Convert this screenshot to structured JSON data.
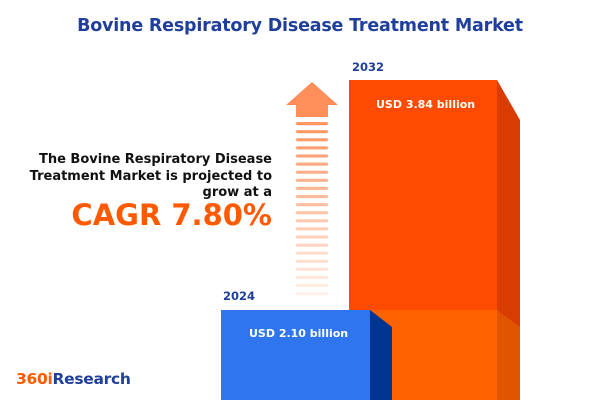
{
  "title": "Bovine Respiratory Disease Treatment Market",
  "description": "The Bovine Respiratory Disease Treatment Market is projected to grow at a",
  "cagr_label": "CAGR 7.80%",
  "logo": {
    "part1": "360i",
    "part2": "Research"
  },
  "colors": {
    "title": "#1f3f9b",
    "accent": "#ff5a00",
    "bar_2024": "#2f76ee",
    "bar_2032": "#ff4b00"
  },
  "chart_data": {
    "type": "bar",
    "categories": [
      "2024",
      "2032"
    ],
    "values": [
      2.1,
      3.84
    ],
    "unit": "USD billion",
    "data_labels": [
      "USD 2.10 billion",
      "USD 3.84 billion"
    ],
    "cagr": 7.8
  }
}
